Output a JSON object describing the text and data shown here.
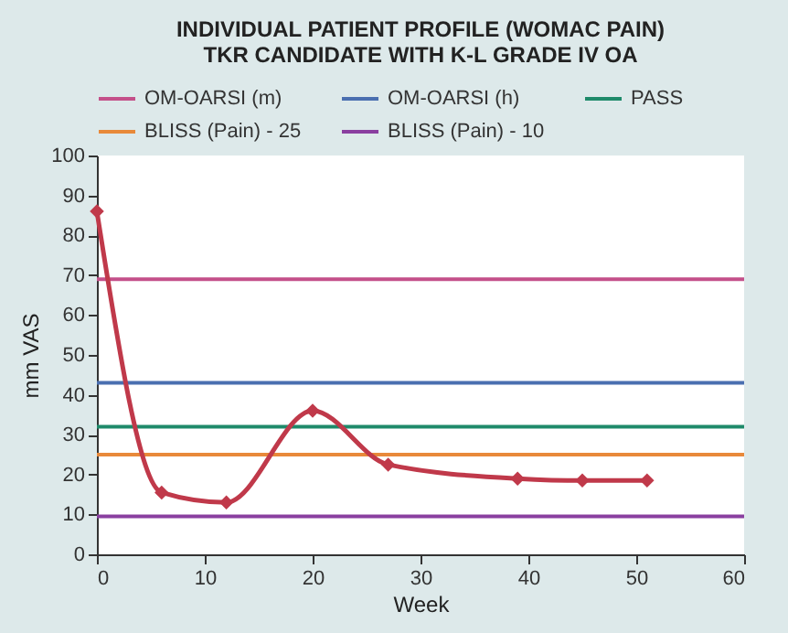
{
  "chart_data": {
    "type": "line",
    "title": [
      "INDIVIDUAL PATIENT PROFILE (WOMAC PAIN)",
      "TKR CANDIDATE WITH K-L GRADE IV OA"
    ],
    "xlabel": "Week",
    "ylabel": "mm VAS",
    "x": [
      0,
      6,
      12,
      20,
      27,
      39,
      45,
      51
    ],
    "series": [
      {
        "color": "#c0394a",
        "values": [
          86,
          15.5,
          13,
          36,
          22.5,
          19,
          18.5,
          18.5
        ]
      }
    ],
    "marker": "diamond",
    "line_style": "solid",
    "xlim": [
      0,
      60
    ],
    "xticks": [
      0,
      10,
      20,
      30,
      40,
      50,
      60
    ],
    "ylim": [
      0,
      100
    ],
    "yticks": [
      0,
      10,
      20,
      30,
      40,
      50,
      60,
      70,
      80,
      90,
      100
    ],
    "ref_lines": [
      {
        "axis": "y",
        "value": 69,
        "label": "OM-OARSI (m)",
        "color": "#c4508a"
      },
      {
        "axis": "y",
        "value": 43,
        "label": "OM-OARSI (h)",
        "color": "#4a6fb0"
      },
      {
        "axis": "y",
        "value": 32,
        "label": "PASS",
        "color": "#1e8a6a"
      },
      {
        "axis": "y",
        "value": 25,
        "label": "BLISS (Pain) - 25",
        "color": "#e8893a"
      },
      {
        "axis": "y",
        "value": 9.5,
        "label": "BLISS (Pain) - 10",
        "color": "#8a3fa0"
      }
    ],
    "grid": false,
    "legend": "top"
  }
}
